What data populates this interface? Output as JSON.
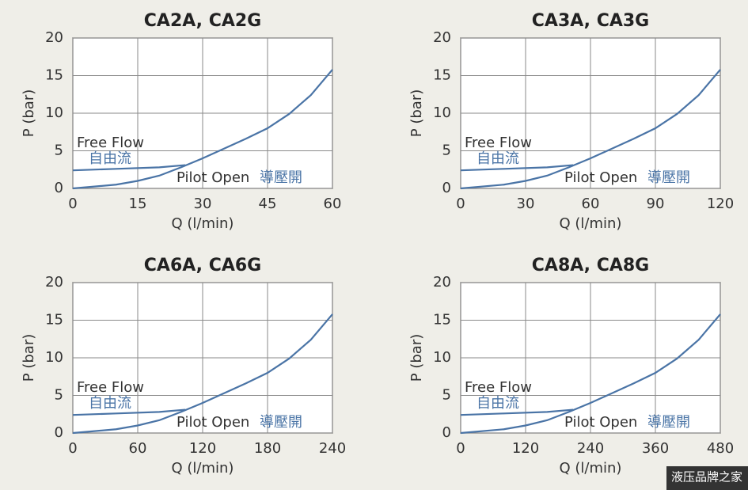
{
  "chart_data": [
    {
      "type": "line",
      "title": "CA2A, CA2G",
      "xlabel": "Q (l/min)",
      "ylabel": "P (bar)",
      "xlim": [
        0,
        60
      ],
      "xticks": [
        0,
        15,
        30,
        45,
        60
      ],
      "ylim": [
        0,
        20
      ],
      "yticks": [
        0,
        5,
        10,
        15,
        20
      ],
      "grid": true,
      "series": [
        {
          "name": "Free Flow",
          "label_zh": "自由流",
          "color": "#4a74a6",
          "x": [
            0,
            10,
            20,
            26
          ],
          "values": [
            2.4,
            2.6,
            2.8,
            3.1
          ]
        },
        {
          "name": "Pilot Open",
          "label_zh": "導壓開",
          "color": "#4a74a6",
          "x": [
            0,
            10,
            15,
            20,
            25,
            30,
            40,
            45,
            50,
            55,
            60
          ],
          "values": [
            0,
            0.5,
            1,
            1.7,
            2.8,
            4,
            6.6,
            8,
            9.9,
            12.4,
            15.8
          ]
        }
      ]
    },
    {
      "type": "line",
      "title": "CA3A, CA3G",
      "xlabel": "Q (l/min)",
      "ylabel": "P (bar)",
      "xlim": [
        0,
        120
      ],
      "xticks": [
        0,
        30,
        60,
        90,
        120
      ],
      "ylim": [
        0,
        20
      ],
      "yticks": [
        0,
        5,
        10,
        15,
        20
      ],
      "grid": true,
      "series": [
        {
          "name": "Free Flow",
          "label_zh": "自由流",
          "color": "#4a74a6",
          "x": [
            0,
            20,
            40,
            52
          ],
          "values": [
            2.4,
            2.6,
            2.8,
            3.1
          ]
        },
        {
          "name": "Pilot Open",
          "label_zh": "導壓開",
          "color": "#4a74a6",
          "x": [
            0,
            20,
            30,
            40,
            50,
            60,
            80,
            90,
            100,
            110,
            120
          ],
          "values": [
            0,
            0.5,
            1,
            1.7,
            2.8,
            4,
            6.6,
            8,
            9.9,
            12.4,
            15.8
          ]
        }
      ]
    },
    {
      "type": "line",
      "title": "CA6A, CA6G",
      "xlabel": "Q (l/min)",
      "ylabel": "P (bar)",
      "xlim": [
        0,
        240
      ],
      "xticks": [
        0,
        60,
        120,
        180,
        240
      ],
      "ylim": [
        0,
        20
      ],
      "yticks": [
        0,
        5,
        10,
        15,
        20
      ],
      "grid": true,
      "series": [
        {
          "name": "Free Flow",
          "label_zh": "自由流",
          "color": "#4a74a6",
          "x": [
            0,
            40,
            80,
            104
          ],
          "values": [
            2.4,
            2.6,
            2.8,
            3.1
          ]
        },
        {
          "name": "Pilot Open",
          "label_zh": "導壓開",
          "color": "#4a74a6",
          "x": [
            0,
            40,
            60,
            80,
            100,
            120,
            160,
            180,
            200,
            220,
            240
          ],
          "values": [
            0,
            0.5,
            1,
            1.7,
            2.8,
            4,
            6.6,
            8,
            9.9,
            12.4,
            15.8
          ]
        }
      ]
    },
    {
      "type": "line",
      "title": "CA8A, CA8G",
      "xlabel": "Q (l/min)",
      "ylabel": "P (bar)",
      "xlim": [
        0,
        480
      ],
      "xticks": [
        0,
        120,
        240,
        360,
        480
      ],
      "ylim": [
        0,
        20
      ],
      "yticks": [
        0,
        5,
        10,
        15,
        20
      ],
      "grid": true,
      "series": [
        {
          "name": "Free Flow",
          "label_zh": "自由流",
          "color": "#4a74a6",
          "x": [
            0,
            80,
            160,
            208
          ],
          "values": [
            2.4,
            2.6,
            2.8,
            3.1
          ]
        },
        {
          "name": "Pilot Open",
          "label_zh": "導壓開",
          "color": "#4a74a6",
          "x": [
            0,
            80,
            120,
            160,
            200,
            240,
            320,
            360,
            400,
            440,
            480
          ],
          "values": [
            0,
            0.5,
            1,
            1.7,
            2.8,
            4,
            6.6,
            8,
            9.9,
            12.4,
            15.8
          ]
        }
      ]
    }
  ],
  "watermark": "液压品牌之家"
}
